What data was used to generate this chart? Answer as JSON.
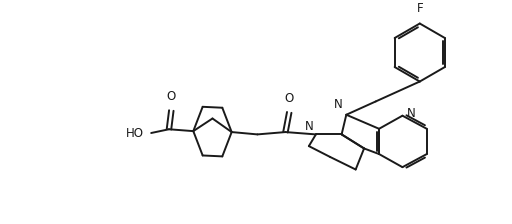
{
  "background_color": "#ffffff",
  "line_color": "#1a1a1a",
  "line_width": 1.4,
  "text_color": "#1a1a1a",
  "font_size": 8.5,
  "xlim": [
    0,
    10.5
  ],
  "ylim": [
    0,
    4.6
  ]
}
